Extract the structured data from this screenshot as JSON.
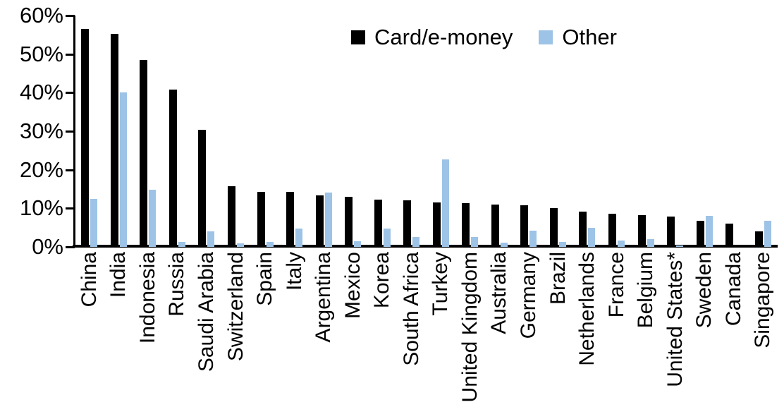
{
  "chart_data": {
    "type": "bar",
    "title": "",
    "xlabel": "",
    "ylabel": "",
    "ylim": [
      0,
      60
    ],
    "ytick_step": 10,
    "ytick_labels": [
      "60%",
      "50%",
      "40%",
      "30%",
      "20%",
      "10%",
      "0%"
    ],
    "grid": false,
    "legend_position": "top-center",
    "categories": [
      "China",
      "India",
      "Indonesia",
      "Russia",
      "Saudi Arabia",
      "Switzerland",
      "Spain",
      "Italy",
      "Argentina",
      "Mexico",
      "Korea",
      "South Africa",
      "Turkey",
      "United Kingdom",
      "Australia",
      "Germany",
      "Brazil",
      "Netherlands",
      "France",
      "Belgium",
      "United States*",
      "Sweden",
      "Canada",
      "Singapore"
    ],
    "series": [
      {
        "name": "Card/e-money",
        "color": "#000000",
        "values": [
          56.5,
          55.3,
          48.5,
          40.8,
          30.4,
          15.8,
          14.3,
          14.2,
          13.4,
          13.0,
          12.3,
          12.1,
          11.5,
          11.3,
          11.0,
          10.8,
          10.0,
          9.1,
          8.6,
          8.2,
          7.9,
          6.7,
          6.1,
          4.1
        ]
      },
      {
        "name": "Other",
        "color": "#9DC3E6",
        "values": [
          12.5,
          40.0,
          14.8,
          1.3,
          4.1,
          1.0,
          1.2,
          4.7,
          14.0,
          1.5,
          4.7,
          2.6,
          22.7,
          2.5,
          1.1,
          4.2,
          1.2,
          5.0,
          1.6,
          2.1,
          0.4,
          8.1,
          0,
          6.8
        ]
      }
    ]
  }
}
